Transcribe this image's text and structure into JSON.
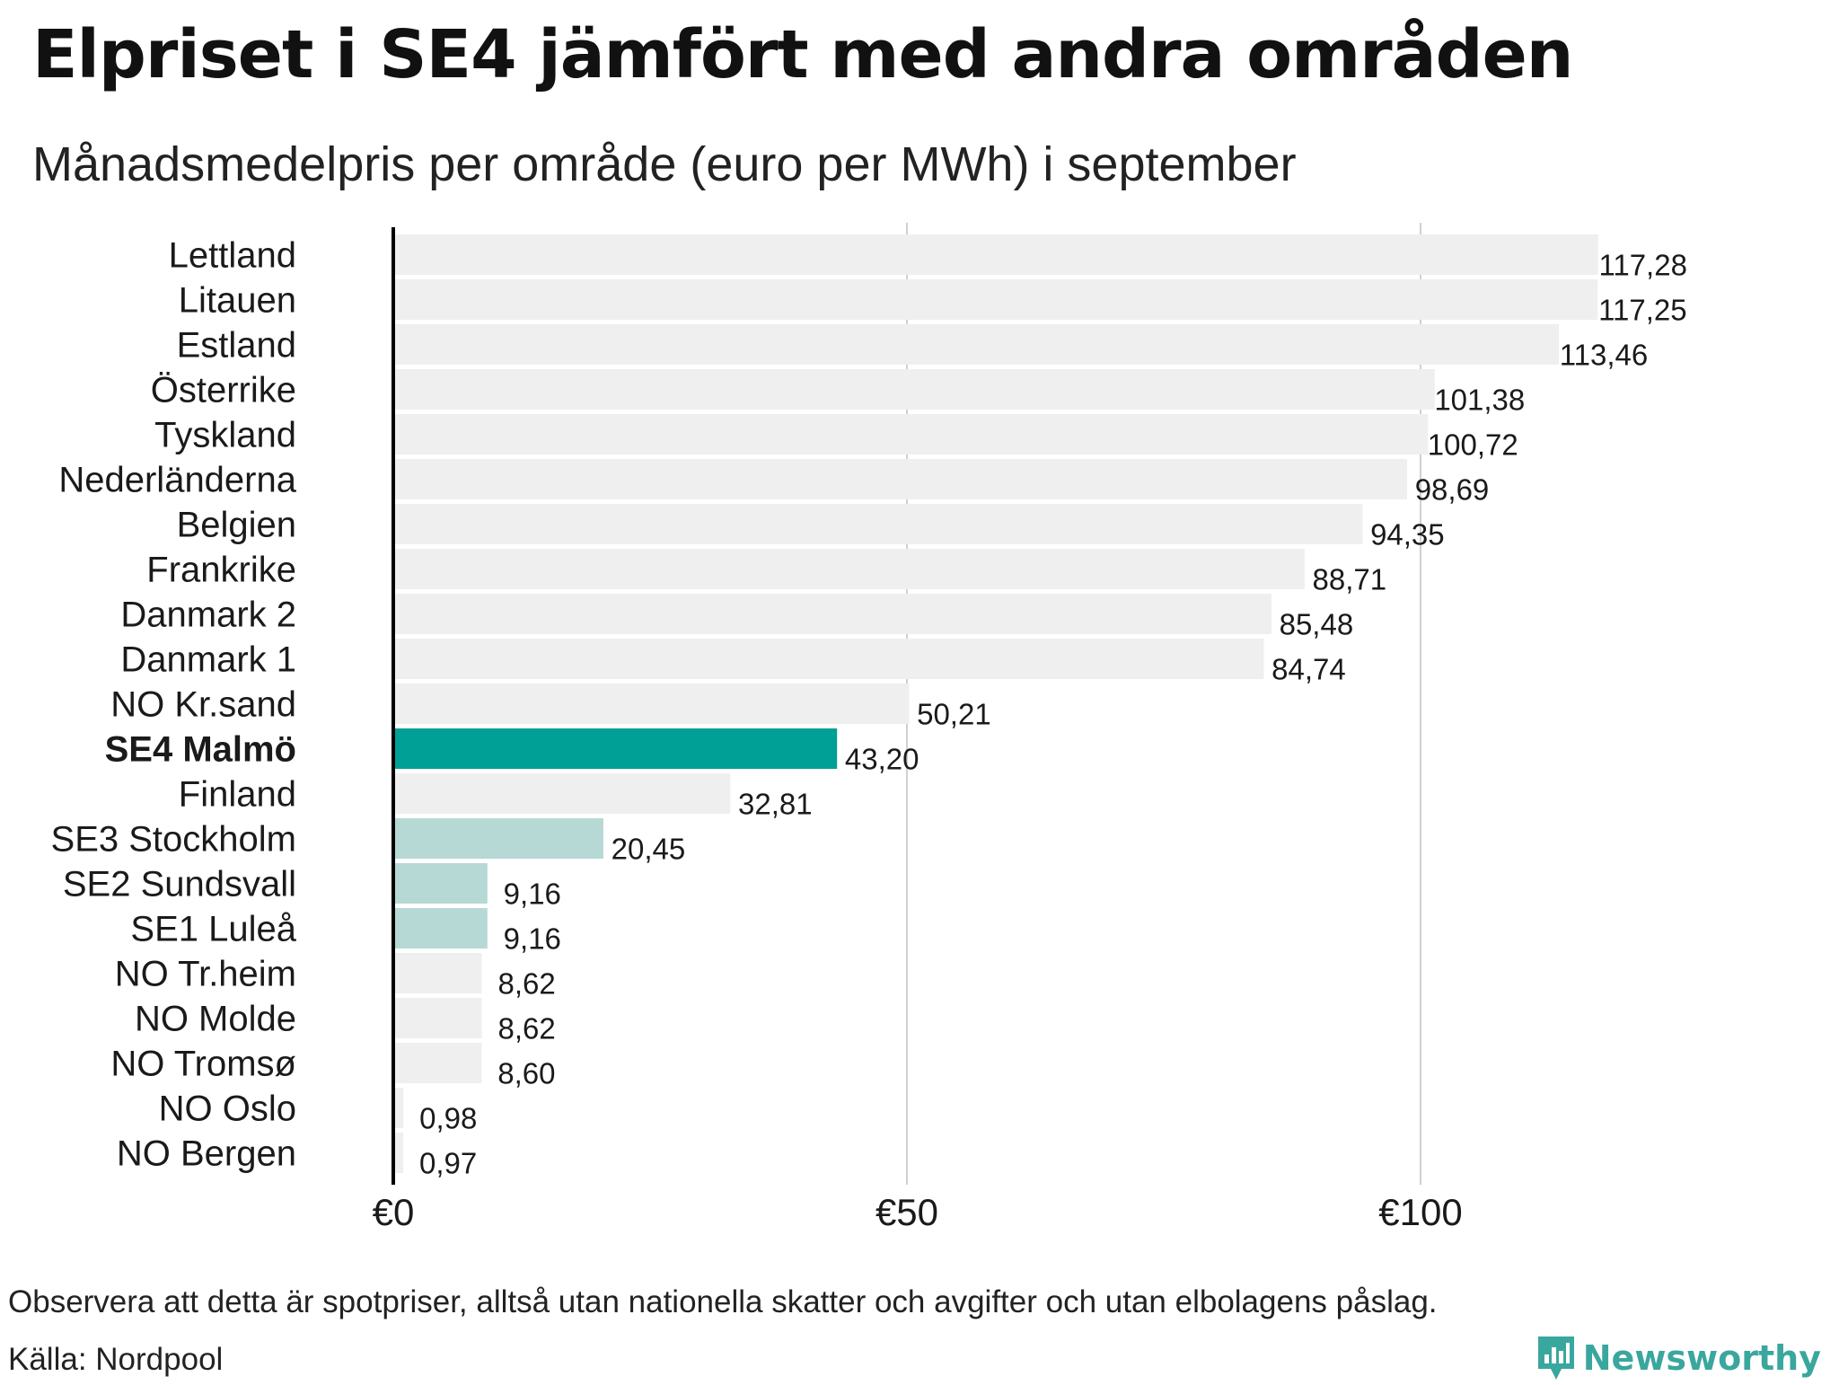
{
  "title": "Elpriset i SE4 jämfört med andra områden",
  "subtitle": "Månadsmedelpris per område (euro per MWh) i september",
  "note": "Observera att detta är spotpriser, alltså utan nationella skatter och avgifter och utan elbolagens påslag.",
  "source": "Källa: Nordpool",
  "brand": {
    "name": "Newsworthy",
    "icon": "bar-chart-icon"
  },
  "colors": {
    "highlight": "#00a096",
    "swedish_other": "#b6d9d5",
    "default": "#efefef",
    "gridline": "#d0d0d0",
    "axis": "#000000",
    "brand": "#3aa79e"
  },
  "chart_data": {
    "type": "bar",
    "orientation": "horizontal",
    "title": "Elpriset i SE4 jämfört med andra områden",
    "subtitle": "Månadsmedelpris per område (euro per MWh) i september",
    "xlim": [
      0,
      125
    ],
    "xticks": [
      0,
      50,
      100
    ],
    "xtick_labels": [
      "€0",
      "€50",
      "€100"
    ],
    "grid": "vertical",
    "bars": [
      {
        "label": "Lettland",
        "value": 117.28,
        "value_label": "117,28",
        "group": "default"
      },
      {
        "label": "Litauen",
        "value": 117.25,
        "value_label": "117,25",
        "group": "default"
      },
      {
        "label": "Estland",
        "value": 113.46,
        "value_label": "113,46",
        "group": "default"
      },
      {
        "label": "Österrike",
        "value": 101.38,
        "value_label": "101,38",
        "group": "default"
      },
      {
        "label": "Tyskland",
        "value": 100.72,
        "value_label": "100,72",
        "group": "default"
      },
      {
        "label": "Nederländerna",
        "value": 98.69,
        "value_label": "98,69",
        "group": "default"
      },
      {
        "label": "Belgien",
        "value": 94.35,
        "value_label": "94,35",
        "group": "default"
      },
      {
        "label": "Frankrike",
        "value": 88.71,
        "value_label": "88,71",
        "group": "default"
      },
      {
        "label": "Danmark   2",
        "value": 85.48,
        "value_label": "85,48",
        "group": "default"
      },
      {
        "label": "Danmark   1",
        "value": 84.74,
        "value_label": "84,74",
        "group": "default"
      },
      {
        "label": "NO Kr.sand",
        "value": 50.21,
        "value_label": "50,21",
        "group": "default"
      },
      {
        "label": "SE4 Malmö",
        "value": 43.2,
        "value_label": "43,20",
        "group": "highlight"
      },
      {
        "label": "Finland",
        "value": 32.81,
        "value_label": "32,81",
        "group": "default"
      },
      {
        "label": "SE3 Stockholm",
        "value": 20.45,
        "value_label": "20,45",
        "group": "swedish_other"
      },
      {
        "label": "SE2 Sundsvall",
        "value": 9.16,
        "value_label": "9,16",
        "group": "swedish_other"
      },
      {
        "label": "SE1 Luleå",
        "value": 9.16,
        "value_label": "9,16",
        "group": "swedish_other"
      },
      {
        "label": "NO Tr.heim",
        "value": 8.62,
        "value_label": "8,62",
        "group": "default"
      },
      {
        "label": "NO Molde",
        "value": 8.62,
        "value_label": "8,62",
        "group": "default"
      },
      {
        "label": "NO Tromsø",
        "value": 8.6,
        "value_label": "8,60",
        "group": "default"
      },
      {
        "label": "NO Oslo",
        "value": 0.98,
        "value_label": "0,98",
        "group": "default"
      },
      {
        "label": "NO Bergen",
        "value": 0.97,
        "value_label": "0,97",
        "group": "default"
      }
    ]
  }
}
